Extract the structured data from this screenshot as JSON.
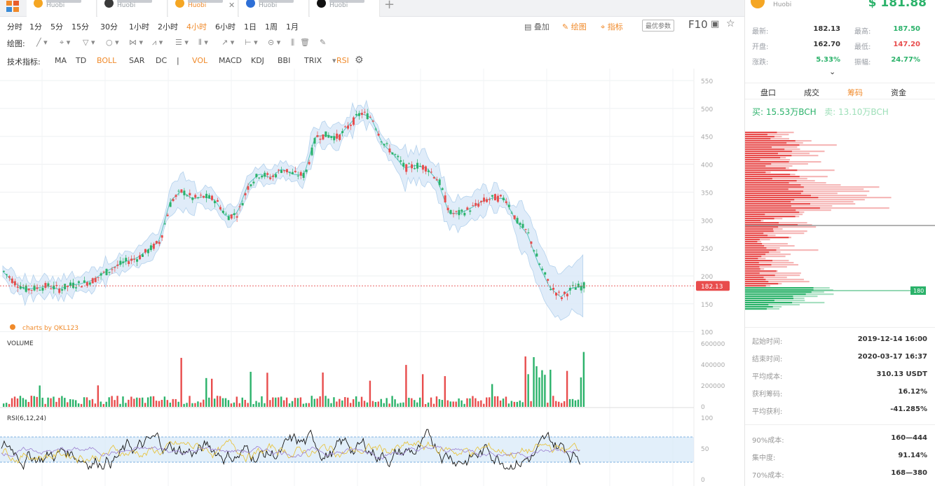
{
  "tabs": [
    {
      "exchange": "Huobi",
      "icon_color": "#f5a623",
      "active": false
    },
    {
      "exchange": "Huobi",
      "icon_color": "#3a3a3a",
      "active": false
    },
    {
      "exchange": "Huobi",
      "icon_color": "#f5a623",
      "active": true
    },
    {
      "exchange": "Huobi",
      "icon_color": "#2e6fd6",
      "active": false
    },
    {
      "exchange": "Huobi",
      "icon_color": "#111111",
      "active": false
    }
  ],
  "add_tab_icon": "plus-icon",
  "periods": [
    "分时",
    "1分",
    "5分",
    "15分",
    "30分",
    "1小时",
    "2小时",
    "4小时",
    "6小时",
    "1日",
    "1周",
    "1月"
  ],
  "active_period": "4小时",
  "toolbar_right": {
    "overlay": "叠加",
    "draw": "绘图",
    "indicator": "指标",
    "best_param": "最优参数",
    "f10": "F10"
  },
  "drawing_label": "绘图:",
  "indicator_label": "技术指标:",
  "indicators": [
    "MA",
    "TD",
    "BOLL",
    "SAR",
    "DC",
    "|",
    "VOL",
    "MACD",
    "KDJ",
    "BBI",
    "TRIX",
    "RSI"
  ],
  "active_indicators": [
    "BOLL",
    "VOL",
    "RSI"
  ],
  "chart_data": [
    {
      "type": "candlestick",
      "title": "",
      "watermark": "charts by QKL123",
      "y_ticks": [
        550,
        500,
        450,
        400,
        350,
        300,
        250,
        200,
        150,
        100
      ],
      "last_price": "182.13",
      "overlay": "BOLL",
      "series_points": [
        208,
        188,
        176,
        178,
        182,
        176,
        183,
        186,
        192,
        205,
        216,
        226,
        232,
        246,
        262,
        334,
        352,
        338,
        342,
        336,
        306,
        312,
        365,
        383,
        376,
        392,
        382,
        380,
        450,
        452,
        448,
        470,
        492,
        484,
        438,
        418,
        393,
        398,
        393,
        370,
        312,
        312,
        322,
        334,
        340,
        338,
        298,
        276,
        222,
        180,
        162,
        178,
        182
      ]
    },
    {
      "type": "bar",
      "title": "VOLUME",
      "y_ticks": [
        "600000",
        "400000",
        "200000",
        "0"
      ]
    },
    {
      "type": "line",
      "title": "RSI(6,12,24)",
      "y_ticks": [
        "100",
        "50",
        "0"
      ]
    }
  ],
  "header": {
    "exchange": "Huobi",
    "price": "$ 181.88"
  },
  "stats": [
    {
      "k1": "最新:",
      "v1": "182.13",
      "k2": "最高:",
      "v2": "187.50",
      "c2": "green"
    },
    {
      "k1": "开盘:",
      "v1": "162.70",
      "k2": "最低:",
      "v2": "147.20",
      "c2": "red"
    },
    {
      "k1": "涨跌:",
      "v1": "5.33%",
      "c1": "green",
      "k2": "振幅:",
      "v2": "24.77%",
      "c2": "green"
    }
  ],
  "subtabs": [
    "盘口",
    "成交",
    "筹码",
    "资金"
  ],
  "active_subtab": "筹码",
  "buy_label": "买:",
  "buy_value": "15.53万BCH",
  "sell_label": "卖:",
  "sell_value": "13.10万BCH",
  "depth_marker": "180",
  "chip_stats": [
    {
      "k": "起始时间:",
      "v": "2019-12-14 16:00"
    },
    {
      "k": "结束时间:",
      "v": "2020-03-17 16:37"
    },
    {
      "k": "平均成本:",
      "v": "310.13 USDT",
      "c": "red"
    },
    {
      "k": "获利筹码:",
      "v": "16.12%"
    },
    {
      "k": "平均获利:",
      "v": "-41.285%",
      "c": "red"
    }
  ],
  "chip_stats2": [
    {
      "k": "90%成本:",
      "v": "160—444"
    },
    {
      "k": "集中度:",
      "v": "91.14%"
    },
    {
      "k": "70%成本:",
      "v": "168—380"
    }
  ],
  "colors": {
    "up": "#2bb26a",
    "down": "#e84d4d",
    "accent": "#f08a2a",
    "boll": "#d8e8f7"
  }
}
